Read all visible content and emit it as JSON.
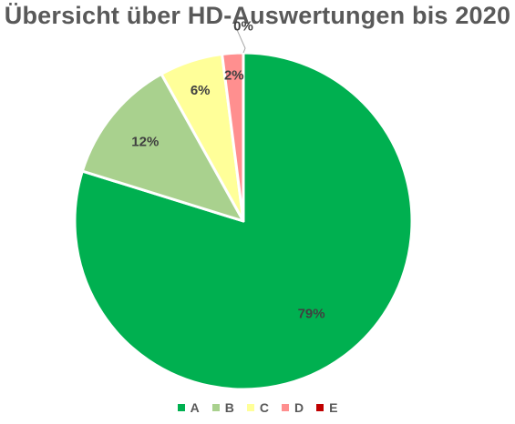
{
  "chart_data": {
    "type": "pie",
    "title": "Übersicht über HD-Auswertungen bis 2020",
    "categories": [
      "A",
      "B",
      "C",
      "D",
      "E"
    ],
    "values": [
      79,
      12,
      6,
      2,
      0
    ],
    "labels": [
      "79%",
      "12%",
      "6%",
      "2%",
      "0%"
    ],
    "colors": [
      "#00B050",
      "#A9D18E",
      "#FFFF99",
      "#FF8F8F",
      "#C00000"
    ],
    "start_angle_deg": 0,
    "direction": "clockwise",
    "legend_position": "bottom"
  }
}
